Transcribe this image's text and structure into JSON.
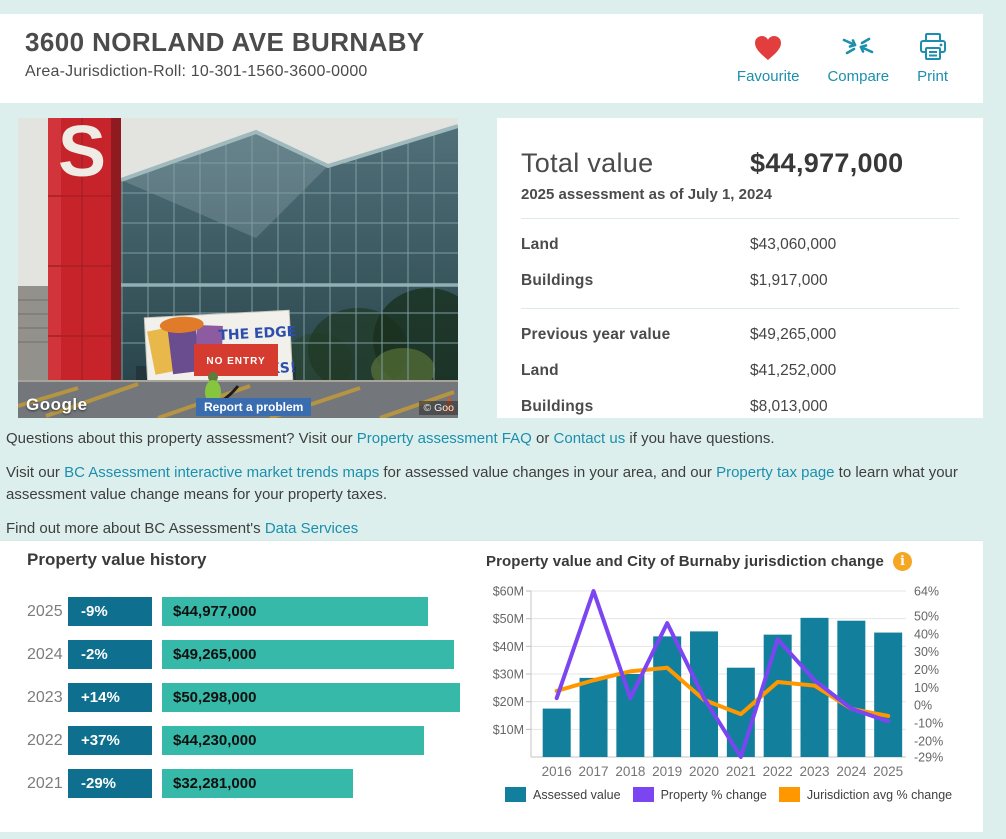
{
  "header": {
    "title": "3600 NORLAND AVE BURNABY",
    "subtitle": "Area-Jurisdiction-Roll: 10-301-1560-3600-0000",
    "actions": [
      {
        "id": "favourite",
        "label": "Favourite"
      },
      {
        "id": "compare",
        "label": "Compare"
      },
      {
        "id": "print",
        "label": "Print"
      }
    ]
  },
  "photo": {
    "logo_letter": "S",
    "banner_line1": "THE EDGE",
    "banner_line2": "IN",
    "banner_line3": "SNACKS!",
    "no_entry_sign": "NO ENTRY",
    "google_logo": "Google",
    "report_button": "Report a problem",
    "copyright": "© Goo"
  },
  "assessment": {
    "total_label": "Total value",
    "total_value": "$44,977,000",
    "as_of": "2025 assessment as of July 1, 2024",
    "current_rows": [
      {
        "label": "Land",
        "value": "$43,060,000"
      },
      {
        "label": "Buildings",
        "value": "$1,917,000"
      }
    ],
    "previous_rows": [
      {
        "label": "Previous year value",
        "value": "$49,265,000"
      },
      {
        "label": "Land",
        "value": "$41,252,000"
      },
      {
        "label": "Buildings",
        "value": "$8,013,000"
      }
    ]
  },
  "notes": {
    "paragraphs": [
      {
        "parts": [
          {
            "t": "Questions about this property assessment? Visit our "
          },
          {
            "t": "Property assessment FAQ",
            "link": true
          },
          {
            "t": " or "
          },
          {
            "t": "Contact us",
            "link": true
          },
          {
            "t": " if you have questions."
          }
        ]
      },
      {
        "parts": [
          {
            "t": "Visit our "
          },
          {
            "t": "BC Assessment interactive market trends maps",
            "link": true
          },
          {
            "t": " for assessed value changes in your area, and our "
          },
          {
            "t": "Property tax page",
            "link": true
          },
          {
            "t": " to learn what your assessment value change means for your property taxes."
          }
        ]
      },
      {
        "parts": [
          {
            "t": "Find out more about BC Assessment's "
          },
          {
            "t": "Data Services",
            "link": true
          }
        ]
      }
    ]
  },
  "history": {
    "title": "Property value history",
    "rows": [
      {
        "year": "2025",
        "change": "-9%",
        "value": "$44,977,000",
        "amount": 44977000
      },
      {
        "year": "2024",
        "change": "-2%",
        "value": "$49,265,000",
        "amount": 49265000
      },
      {
        "year": "2023",
        "change": "+14%",
        "value": "$50,298,000",
        "amount": 50298000
      },
      {
        "year": "2022",
        "change": "+37%",
        "value": "$44,230,000",
        "amount": 44230000
      },
      {
        "year": "2021",
        "change": "-29%",
        "value": "$32,281,000",
        "amount": 32281000
      }
    ]
  },
  "chart_data": {
    "type": "bar+line",
    "title": "Property value and City of Burnaby jurisdiction change",
    "x": [
      2016,
      2017,
      2018,
      2019,
      2020,
      2021,
      2022,
      2023,
      2024,
      2025
    ],
    "series": [
      {
        "name": "Assessed value",
        "type": "bar",
        "color": "#12809c",
        "unit": "$M",
        "values": [
          17.5,
          28.6,
          30.0,
          43.6,
          45.4,
          32.281,
          44.23,
          50.298,
          49.265,
          44.977
        ]
      },
      {
        "name": "Property % change",
        "type": "line",
        "color": "#7b45f2",
        "unit": "%",
        "values": [
          4,
          64,
          4,
          46,
          4,
          -29,
          37,
          14,
          -2,
          -9
        ]
      },
      {
        "name": "Jurisdiction avg % change",
        "type": "line",
        "color": "#ff9800",
        "unit": "%",
        "values": [
          8,
          14,
          19,
          21,
          3,
          -5,
          13,
          11,
          -2,
          -6
        ]
      }
    ],
    "left_axis": {
      "label_format": "$M",
      "ticks": [
        "$60M",
        "$50M",
        "$40M",
        "$30M",
        "$20M",
        "$10M"
      ],
      "range": [
        0,
        60
      ]
    },
    "right_axis": {
      "label_format": "%",
      "ticks": [
        64,
        50,
        40,
        30,
        20,
        10,
        0,
        -10,
        -20,
        -29
      ],
      "range": [
        -29,
        64
      ]
    },
    "grid": true,
    "legend_position": "bottom"
  },
  "colors": {
    "accent_teal": "#1b8fad",
    "mint_background": "#ddefec",
    "history_badge": "#0e6f8e",
    "history_bar": "#36b9a8",
    "heart_red": "#e33e3e",
    "info_orange": "#f5a623"
  }
}
